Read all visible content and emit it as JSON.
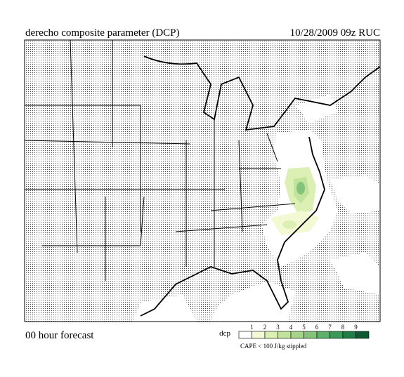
{
  "header": {
    "title": "derecho composite parameter (DCP)",
    "valid": "10/28/2009  09z  RUC"
  },
  "footer": {
    "forecast": "00 hour forecast"
  },
  "legend": {
    "label": "dcp",
    "ticks": [
      1,
      2,
      3,
      4,
      5,
      6,
      7,
      8,
      9
    ],
    "colors": [
      "#ffffff",
      "#f3f9d2",
      "#dcefb4",
      "#c2e39c",
      "#a5d48a",
      "#84c47a",
      "#5fb06a",
      "#3c9858",
      "#1f7d45",
      "#0b5a30"
    ],
    "note": "CAPE < 100 J/kg stippled"
  }
}
